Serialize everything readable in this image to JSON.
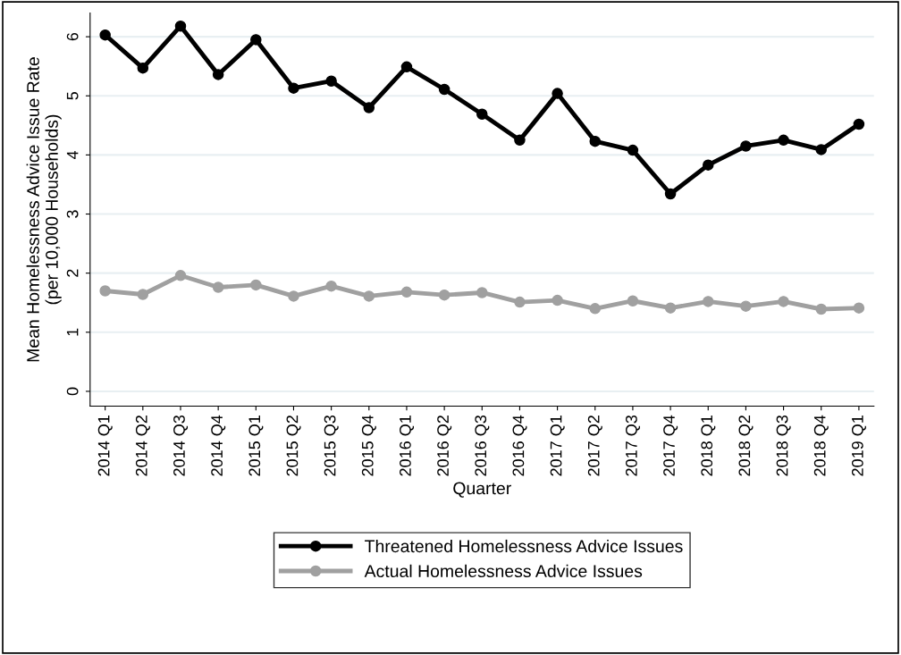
{
  "chart_data": {
    "type": "line",
    "xlabel": "Quarter",
    "ylabel": "Mean Homelessness Advice Issue Rate\n(per 10,000 Households)",
    "categories": [
      "2014 Q1",
      "2014 Q2",
      "2014 Q3",
      "2014 Q4",
      "2015 Q1",
      "2015 Q2",
      "2015 Q3",
      "2015 Q4",
      "2016 Q1",
      "2016 Q2",
      "2016 Q3",
      "2016 Q4",
      "2017 Q1",
      "2017 Q2",
      "2017 Q3",
      "2017 Q4",
      "2018 Q1",
      "2018 Q2",
      "2018 Q3",
      "2018 Q4",
      "2019 Q1"
    ],
    "series": [
      {
        "name": "Threatened Homelessness Advice Issues",
        "color": "#000000",
        "values": [
          6.03,
          5.47,
          6.18,
          5.36,
          5.95,
          5.13,
          5.25,
          4.8,
          5.49,
          5.11,
          4.69,
          4.25,
          5.04,
          4.23,
          4.08,
          3.34,
          3.83,
          4.15,
          4.25,
          4.09,
          4.52
        ]
      },
      {
        "name": "Actual Homelessness Advice Issues",
        "color": "#a0a0a0",
        "values": [
          1.7,
          1.64,
          1.96,
          1.76,
          1.8,
          1.61,
          1.78,
          1.61,
          1.68,
          1.63,
          1.67,
          1.51,
          1.54,
          1.4,
          1.53,
          1.41,
          1.52,
          1.44,
          1.52,
          1.39,
          1.41
        ]
      }
    ],
    "ylim": [
      -0.25,
      6.4
    ],
    "yticks": [
      0,
      1,
      2,
      3,
      4,
      5,
      6
    ],
    "grid": "y",
    "legend": "bottom",
    "marker": "circle",
    "line_style": "solid"
  }
}
